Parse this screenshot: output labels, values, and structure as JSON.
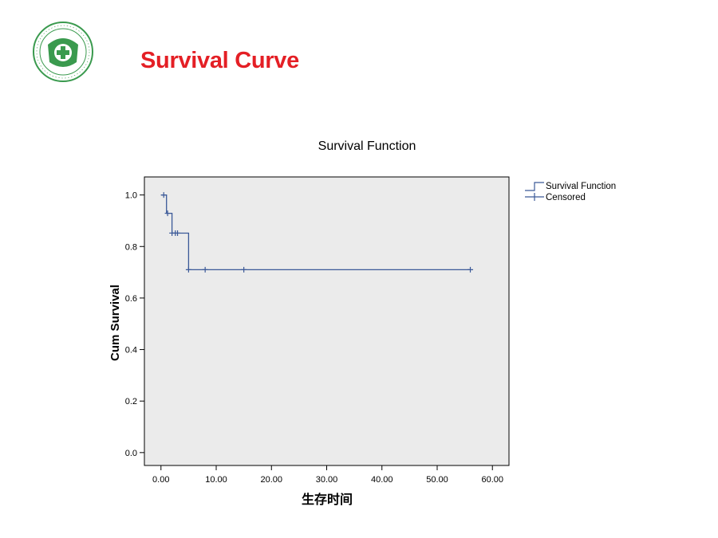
{
  "slide": {
    "title": "Survival Curve",
    "logo_icon": "hospital-seal-logo-icon"
  },
  "colors": {
    "title_red": "#e41f25",
    "logo_green": "#3a9a4e",
    "plot_bg": "#ebebeb",
    "series_line": "#3b5998"
  },
  "chart_data": {
    "type": "line",
    "step": true,
    "title": "Survival Function",
    "xlabel": "生存时间",
    "ylabel": "Cum Survival",
    "xlim": [
      -3,
      63
    ],
    "ylim": [
      -0.05,
      1.07
    ],
    "xticks": [
      0,
      10,
      20,
      30,
      40,
      50,
      60
    ],
    "xtick_labels": [
      "0.00",
      "10.00",
      "20.00",
      "30.00",
      "40.00",
      "50.00",
      "60.00"
    ],
    "yticks": [
      0.0,
      0.2,
      0.4,
      0.6,
      0.8,
      1.0
    ],
    "ytick_labels": [
      "0.0",
      "0.2",
      "0.4",
      "0.6",
      "0.8",
      "1.0"
    ],
    "grid": false,
    "legend_position": "outside-top-right",
    "series": [
      {
        "name": "Survival Function",
        "step_points": [
          {
            "x": 0,
            "y": 1.0
          },
          {
            "x": 1,
            "y": 1.0
          },
          {
            "x": 1,
            "y": 0.929
          },
          {
            "x": 2,
            "y": 0.929
          },
          {
            "x": 2,
            "y": 0.852
          },
          {
            "x": 5,
            "y": 0.852
          },
          {
            "x": 5,
            "y": 0.71
          },
          {
            "x": 56,
            "y": 0.71
          }
        ]
      },
      {
        "name": "Censored",
        "points": [
          {
            "x": 0.5,
            "y": 1.0
          },
          {
            "x": 1.2,
            "y": 0.929
          },
          {
            "x": 2.0,
            "y": 0.852
          },
          {
            "x": 2.6,
            "y": 0.852
          },
          {
            "x": 3.0,
            "y": 0.852
          },
          {
            "x": 5.0,
            "y": 0.71
          },
          {
            "x": 8.0,
            "y": 0.71
          },
          {
            "x": 15.0,
            "y": 0.71
          },
          {
            "x": 56.0,
            "y": 0.71
          }
        ]
      }
    ]
  }
}
